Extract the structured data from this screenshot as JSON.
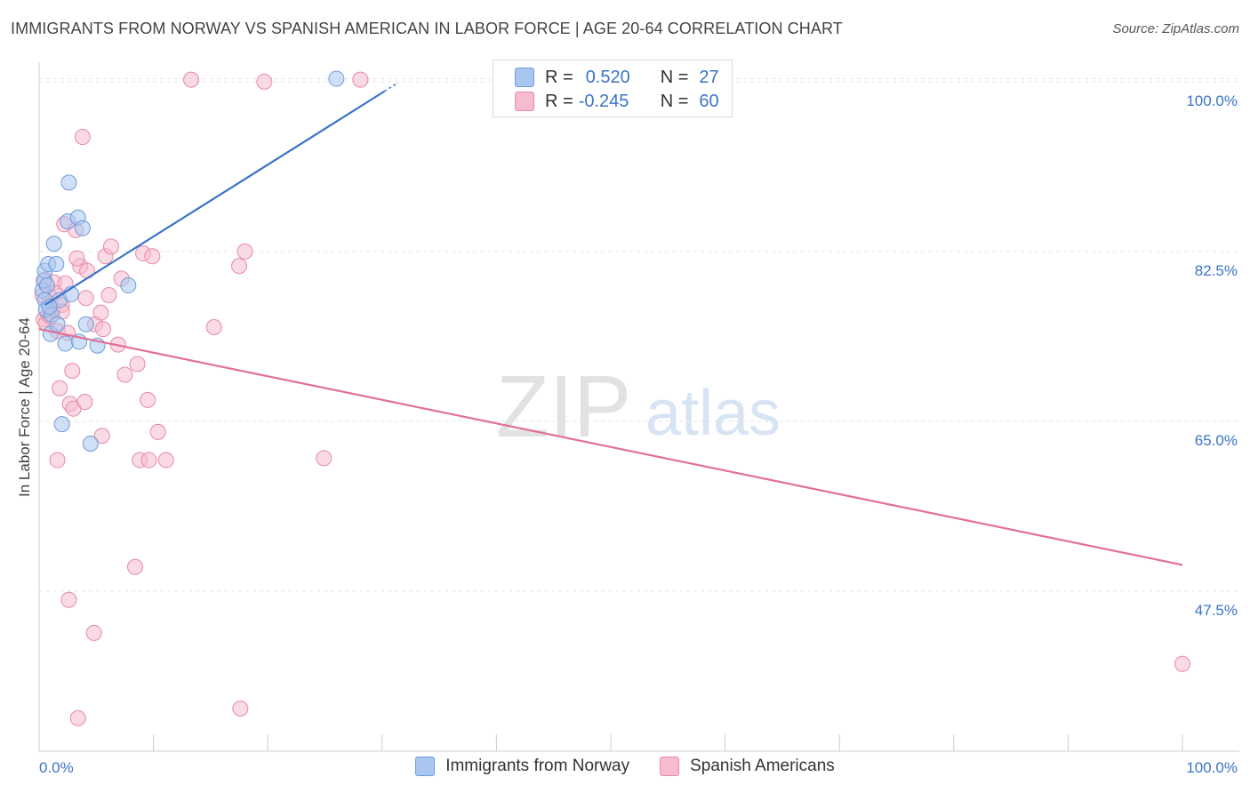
{
  "title": "IMMIGRANTS FROM NORWAY VS SPANISH AMERICAN IN LABOR FORCE | AGE 20-64 CORRELATION CHART",
  "source": "Source: ZipAtlas.com",
  "watermark": {
    "zip": "ZIP",
    "atlas": "atlas"
  },
  "legend": {
    "r_label": "R =",
    "n_label": "N =",
    "rows": [
      {
        "r": "0.520",
        "n": "27",
        "color": "#a9c6f0"
      },
      {
        "r": "-0.245",
        "n": "60",
        "color": "#f6bccd"
      }
    ]
  },
  "colors": {
    "blue_fill": "#a9c6f0",
    "blue_stroke": "#6f9bd9",
    "blue_line": "#3a74c8",
    "pink_fill": "#f6bccd",
    "pink_stroke": "#e68aa7",
    "pink_line": "#e36f97",
    "tick_label": "#3a74c8",
    "grid": "#e3e3e3"
  },
  "chart_data": {
    "type": "scatter",
    "title": "IMMIGRANTS FROM NORWAY VS SPANISH AMERICAN IN LABOR FORCE | AGE 20-64 CORRELATION CHART",
    "xlabel": "",
    "ylabel": "In Labor Force | Age 20-64",
    "xlim": [
      0,
      100
    ],
    "ylim": [
      31.0,
      102.0
    ],
    "x_tick_labels": [
      "0.0%",
      "100.0%"
    ],
    "y_ticks": [
      47.5,
      65.0,
      82.5,
      100.0
    ],
    "y_tick_labels": [
      "47.5%",
      "65.0%",
      "82.5%",
      "100.0%"
    ],
    "grid": true,
    "legend_position": "top-center",
    "series": [
      {
        "name": "Immigrants from Norway",
        "color": "#a9c6f0",
        "r": 0.52,
        "n": 27,
        "trend": {
          "x": [
            0.5,
            30.2
          ],
          "y": [
            77.0,
            99.0
          ]
        },
        "points": [
          [
            0.3,
            78.5
          ],
          [
            0.4,
            79.5
          ],
          [
            0.5,
            80.5
          ],
          [
            0.5,
            77.5
          ],
          [
            0.6,
            76.5
          ],
          [
            0.7,
            79.0
          ],
          [
            0.8,
            81.2
          ],
          [
            1.0,
            74.0
          ],
          [
            1.1,
            76.0
          ],
          [
            1.3,
            83.3
          ],
          [
            1.5,
            81.2
          ],
          [
            1.6,
            75.0
          ],
          [
            1.8,
            77.5
          ],
          [
            2.0,
            64.7
          ],
          [
            2.3,
            73.0
          ],
          [
            2.5,
            85.6
          ],
          [
            2.6,
            89.6
          ],
          [
            2.8,
            78.1
          ],
          [
            3.4,
            86.0
          ],
          [
            3.5,
            73.2
          ],
          [
            3.8,
            84.9
          ],
          [
            4.1,
            75.0
          ],
          [
            4.5,
            62.7
          ],
          [
            5.1,
            72.8
          ],
          [
            7.8,
            79.0
          ],
          [
            26.0,
            100.3
          ],
          [
            0.9,
            76.8
          ]
        ]
      },
      {
        "name": "Spanish Americans",
        "color": "#f6bccd",
        "r": -0.245,
        "n": 60,
        "trend": {
          "x": [
            0.0,
            100.0
          ],
          "y": [
            74.5,
            50.2
          ]
        },
        "points": [
          [
            0.3,
            78.0
          ],
          [
            0.4,
            75.5
          ],
          [
            0.5,
            79.6
          ],
          [
            0.6,
            75.1
          ],
          [
            0.7,
            79.0
          ],
          [
            0.8,
            76.0
          ],
          [
            0.9,
            77.8
          ],
          [
            1.0,
            75.8
          ],
          [
            1.2,
            76.6
          ],
          [
            1.3,
            79.3
          ],
          [
            1.4,
            78.2
          ],
          [
            1.6,
            74.3
          ],
          [
            1.6,
            61.0
          ],
          [
            1.8,
            68.4
          ],
          [
            2.0,
            77.0
          ],
          [
            2.2,
            85.3
          ],
          [
            2.3,
            79.2
          ],
          [
            2.5,
            74.1
          ],
          [
            2.6,
            46.6
          ],
          [
            2.7,
            66.8
          ],
          [
            2.9,
            70.2
          ],
          [
            3.0,
            66.3
          ],
          [
            3.2,
            84.7
          ],
          [
            3.4,
            34.4
          ],
          [
            3.6,
            81.0
          ],
          [
            3.8,
            94.3
          ],
          [
            4.0,
            67.0
          ],
          [
            4.1,
            77.7
          ],
          [
            4.2,
            80.5
          ],
          [
            4.8,
            43.2
          ],
          [
            4.9,
            75.0
          ],
          [
            5.4,
            76.2
          ],
          [
            5.5,
            63.5
          ],
          [
            5.6,
            74.5
          ],
          [
            5.8,
            82.0
          ],
          [
            6.1,
            78.0
          ],
          [
            6.3,
            83.0
          ],
          [
            6.9,
            72.9
          ],
          [
            7.2,
            79.7
          ],
          [
            7.5,
            69.8
          ],
          [
            8.4,
            50.0
          ],
          [
            8.6,
            70.9
          ],
          [
            8.8,
            61.0
          ],
          [
            9.1,
            82.3
          ],
          [
            9.5,
            67.2
          ],
          [
            9.6,
            61.0
          ],
          [
            9.9,
            82.0
          ],
          [
            10.4,
            63.9
          ],
          [
            11.1,
            61.0
          ],
          [
            13.3,
            100.2
          ],
          [
            15.3,
            74.7
          ],
          [
            17.5,
            81.0
          ],
          [
            17.6,
            35.4
          ],
          [
            18.0,
            82.5
          ],
          [
            19.7,
            100.0
          ],
          [
            24.9,
            61.2
          ],
          [
            28.1,
            100.2
          ],
          [
            100.0,
            40.0
          ],
          [
            3.3,
            81.8
          ],
          [
            2.0,
            76.3
          ]
        ]
      }
    ]
  },
  "bottom_legend": {
    "items": [
      {
        "label": "Immigrants from Norway",
        "color": "#a9c6f0"
      },
      {
        "label": "Spanish Americans",
        "color": "#f6bccd"
      }
    ]
  }
}
